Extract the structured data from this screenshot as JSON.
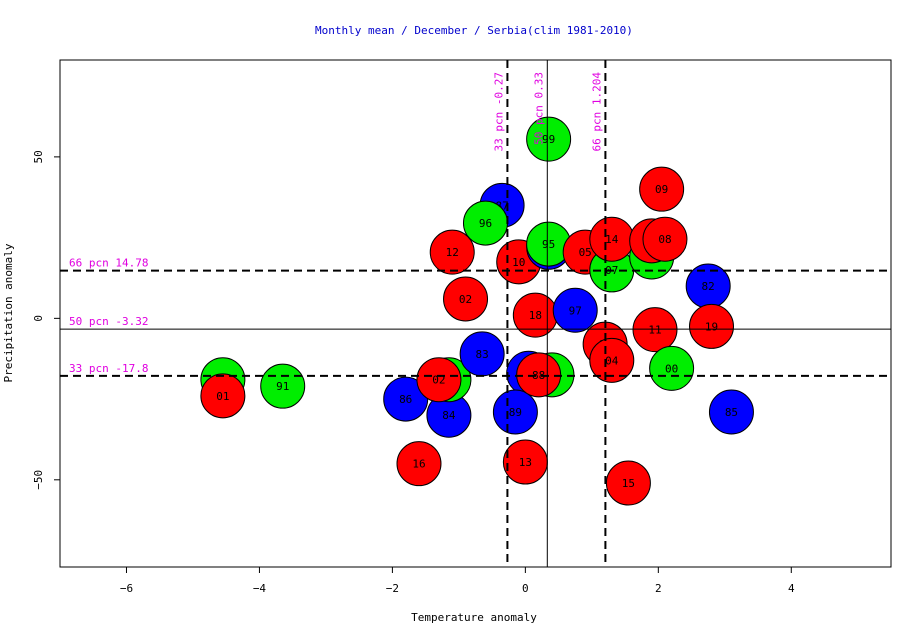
{
  "chart_data": {
    "type": "scatter",
    "title": "Monthly mean / December / Serbia(clim 1981-2010)",
    "xlabel": "Temperature anomaly",
    "ylabel": "Precipitation anomaly",
    "xlim": [
      -7,
      5.5
    ],
    "ylim": [
      -77,
      80
    ],
    "xticks": [
      -6,
      -4,
      -2,
      0,
      2,
      4
    ],
    "yticks": [
      -50,
      0,
      50
    ],
    "grid": false,
    "colors": {
      "title": "#0000cc",
      "percentile": "#e000e0",
      "red": "#ff0000",
      "green": "#00ee00",
      "blue": "#0000ff"
    },
    "vlines": [
      {
        "x": -0.27,
        "label": "33 pcn -0.27",
        "dashed": true
      },
      {
        "x": 0.33,
        "label": "50 pcn 0.33",
        "dashed": false
      },
      {
        "x": 1.204,
        "label": "66 pcn 1.204",
        "dashed": true
      }
    ],
    "hlines": [
      {
        "y": 14.78,
        "label": "66 pcn 14.78",
        "dashed": true
      },
      {
        "y": -3.32,
        "label": "50 pcn -3.32",
        "dashed": false
      },
      {
        "y": -17.8,
        "label": "33 pcn -17.8",
        "dashed": true
      }
    ],
    "points": [
      {
        "label": "98",
        "x": -4.55,
        "y": -19,
        "color": "green"
      },
      {
        "label": "01",
        "x": -4.55,
        "y": -24,
        "color": "red"
      },
      {
        "label": "91",
        "x": -3.65,
        "y": -21,
        "color": "green"
      },
      {
        "label": "86",
        "x": -1.8,
        "y": -25,
        "color": "blue"
      },
      {
        "label": "16",
        "x": -1.6,
        "y": -45,
        "color": "red"
      },
      {
        "label": "84",
        "x": -1.15,
        "y": -30,
        "color": "blue"
      },
      {
        "label": "22",
        "x": -1.15,
        "y": -19,
        "color": "green"
      },
      {
        "label": "02",
        "x": -1.3,
        "y": -19,
        "color": "red"
      },
      {
        "label": "12",
        "x": -1.1,
        "y": 20.5,
        "color": "red"
      },
      {
        "label": "02",
        "x": -0.9,
        "y": 6,
        "color": "red"
      },
      {
        "label": "87",
        "x": -0.35,
        "y": 35,
        "color": "blue"
      },
      {
        "label": "96",
        "x": -0.6,
        "y": 29.5,
        "color": "green"
      },
      {
        "label": "83",
        "x": -0.65,
        "y": -11,
        "color": "blue"
      },
      {
        "label": "80",
        "x": 0.05,
        "y": -17,
        "color": "blue"
      },
      {
        "label": "89",
        "x": -0.15,
        "y": -29,
        "color": "blue"
      },
      {
        "label": "13",
        "x": 0.0,
        "y": -44.5,
        "color": "red"
      },
      {
        "label": "10",
        "x": -0.1,
        "y": 17.5,
        "color": "red"
      },
      {
        "label": "99",
        "x": 0.35,
        "y": 55.5,
        "color": "green"
      },
      {
        "label": "90",
        "x": 0.35,
        "y": 22,
        "color": "blue"
      },
      {
        "label": "95",
        "x": 0.35,
        "y": 23,
        "color": "green"
      },
      {
        "label": "18",
        "x": 0.15,
        "y": 1,
        "color": "red"
      },
      {
        "label": "94",
        "x": 0.4,
        "y": -17.5,
        "color": "green"
      },
      {
        "label": "88",
        "x": 0.2,
        "y": -17.5,
        "color": "red"
      },
      {
        "label": "97",
        "x": 0.75,
        "y": 2.5,
        "color": "blue"
      },
      {
        "label": "05",
        "x": 0.9,
        "y": 20.5,
        "color": "red"
      },
      {
        "label": "07",
        "x": 1.3,
        "y": 15,
        "color": "green"
      },
      {
        "label": "14",
        "x": 1.3,
        "y": 24.5,
        "color": "red"
      },
      {
        "label": "03",
        "x": 1.9,
        "y": 19,
        "color": "green"
      },
      {
        "label": "17",
        "x": 1.9,
        "y": 24,
        "color": "red"
      },
      {
        "label": "08",
        "x": 2.1,
        "y": 24.5,
        "color": "red"
      },
      {
        "label": "09",
        "x": 2.05,
        "y": 40,
        "color": "red"
      },
      {
        "label": "06",
        "x": 1.2,
        "y": -8,
        "color": "red"
      },
      {
        "label": "04",
        "x": 1.3,
        "y": -13,
        "color": "red"
      },
      {
        "label": "11",
        "x": 1.95,
        "y": -3.5,
        "color": "red"
      },
      {
        "label": "00",
        "x": 2.2,
        "y": -15.5,
        "color": "green"
      },
      {
        "label": "15",
        "x": 1.55,
        "y": -51,
        "color": "red"
      },
      {
        "label": "82",
        "x": 2.75,
        "y": 10,
        "color": "blue"
      },
      {
        "label": "19",
        "x": 2.8,
        "y": -2.5,
        "color": "red"
      },
      {
        "label": "85",
        "x": 3.1,
        "y": -29,
        "color": "blue"
      }
    ]
  }
}
